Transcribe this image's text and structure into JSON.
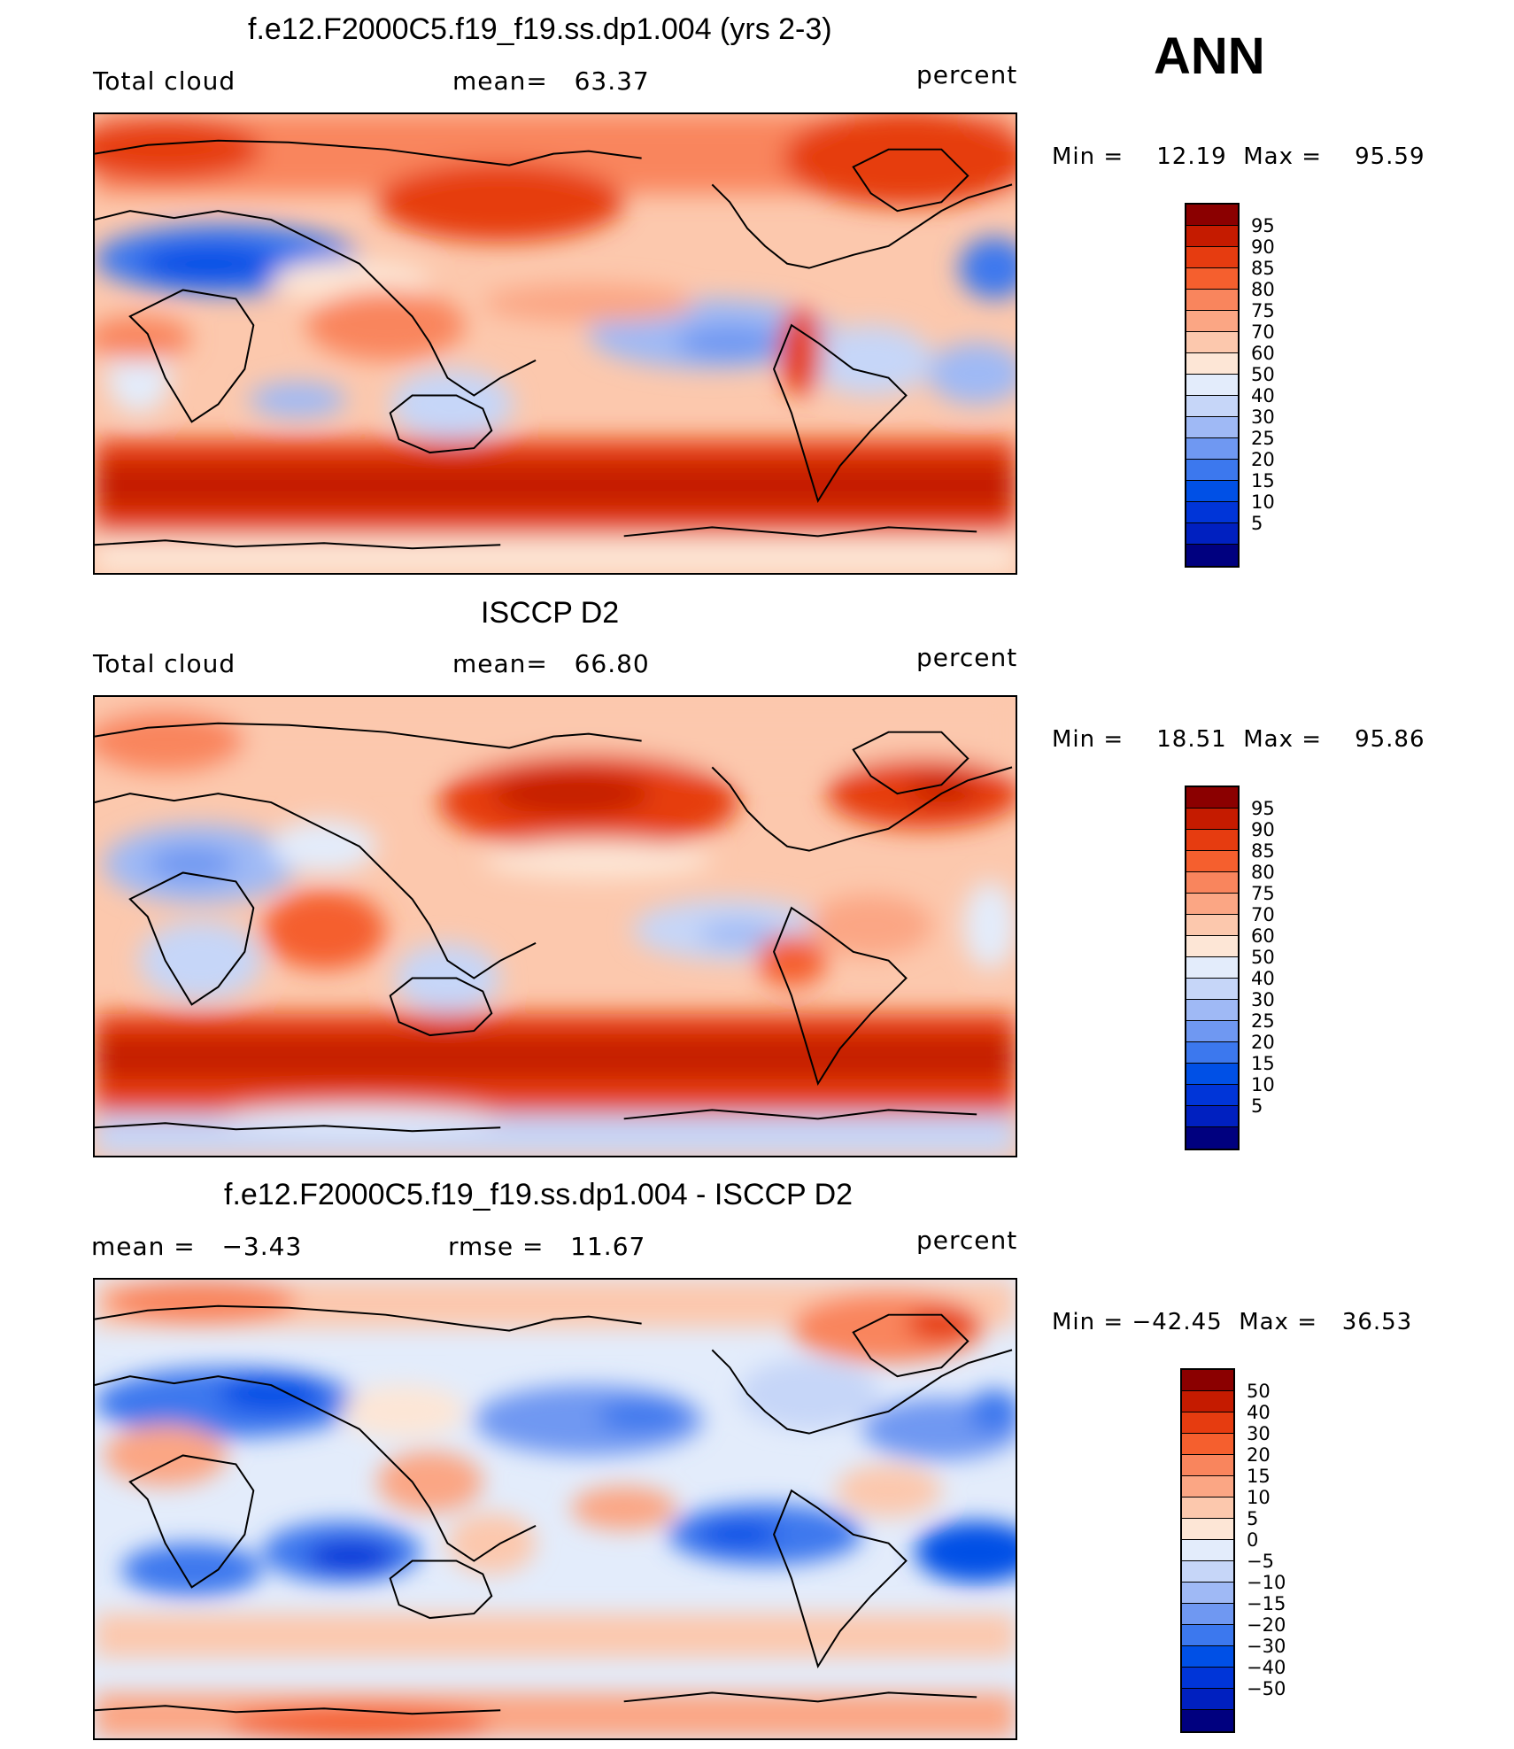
{
  "season": "ANN",
  "units": "percent",
  "colors": {
    "abs_scale": [
      "#00007f",
      "#0020c0",
      "#0035d8",
      "#0050e6",
      "#3c78ee",
      "#6f98f2",
      "#9fb9f5",
      "#c6d6f8",
      "#e3ecfb",
      "#fde6d6",
      "#fcc8ad",
      "#fba684",
      "#f9855d",
      "#f55f2e",
      "#e63c10",
      "#c51b00",
      "#8b0000"
    ],
    "diff_scale": [
      "#00007f",
      "#0020c0",
      "#0035d8",
      "#0050e6",
      "#3c78ee",
      "#6f98f2",
      "#9fb9f5",
      "#c6d6f8",
      "#e3ecfb",
      "#fde6d6",
      "#fcc8ad",
      "#fba684",
      "#f9855d",
      "#f55f2e",
      "#e63c10",
      "#c51b00",
      "#8b0000"
    ]
  },
  "panels": [
    {
      "title": "f.e12.F2000C5.f19_f19.ss.dp1.004 (yrs 2-3)",
      "left_label": "Total cloud",
      "mid_label": "mean=   63.37",
      "right_label": "percent",
      "minmax": "Min =    12.19  Max =    95.59",
      "levels": [
        "95",
        "90",
        "85",
        "80",
        "75",
        "70",
        "60",
        "50",
        "40",
        "30",
        "25",
        "20",
        "15",
        "10",
        "5"
      ],
      "kind": "model"
    },
    {
      "title": "ISCCP D2",
      "left_label": "Total cloud",
      "mid_label": "mean=   66.80",
      "right_label": "percent",
      "minmax": "Min =    18.51  Max =    95.86",
      "levels": [
        "95",
        "90",
        "85",
        "80",
        "75",
        "70",
        "60",
        "50",
        "40",
        "30",
        "25",
        "20",
        "15",
        "10",
        "5"
      ],
      "kind": "obs"
    },
    {
      "title": "f.e12.F2000C5.f19_f19.ss.dp1.004 - ISCCP D2",
      "left_label": "mean =   −3.43",
      "mid_label": "rmse =   11.67",
      "right_label": "percent",
      "minmax": "Min = −42.45  Max =   36.53",
      "levels": [
        "50",
        "40",
        "30",
        "20",
        "15",
        "10",
        "5",
        "0",
        "−5",
        "−10",
        "−15",
        "−20",
        "−30",
        "−40",
        "−50"
      ],
      "kind": "diff"
    }
  ]
}
